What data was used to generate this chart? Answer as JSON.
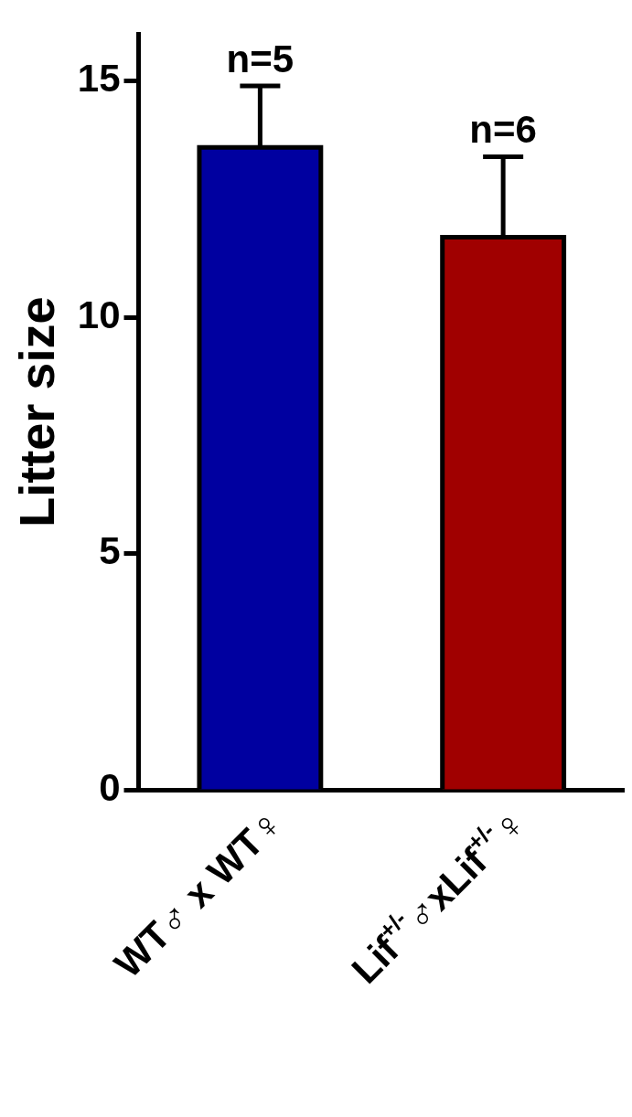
{
  "chart_data": {
    "type": "bar",
    "ylabel": "Litter size",
    "categories": [
      "WT♂ x WT♀",
      "Lif$^{+/-}$♂xLif$^{+/-}$♀"
    ],
    "values": [
      13.6,
      11.7
    ],
    "errors": [
      1.3,
      1.7
    ],
    "colors": [
      "#0000a0",
      "#a00000"
    ],
    "ylim": [
      0,
      16
    ],
    "yticks": [
      0,
      5,
      10,
      15
    ],
    "grid": false,
    "legend": false,
    "annotations": [
      "n=5",
      "n=6"
    ]
  }
}
